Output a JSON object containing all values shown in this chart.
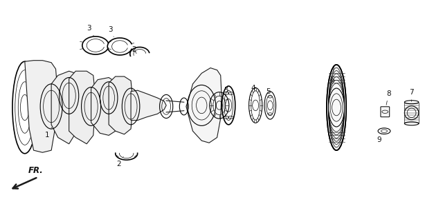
{
  "background_color": "#ffffff",
  "line_color": "#1a1a1a",
  "text_color": "#111111",
  "fig_width": 6.4,
  "fig_height": 3.12,
  "dpi": 100
}
